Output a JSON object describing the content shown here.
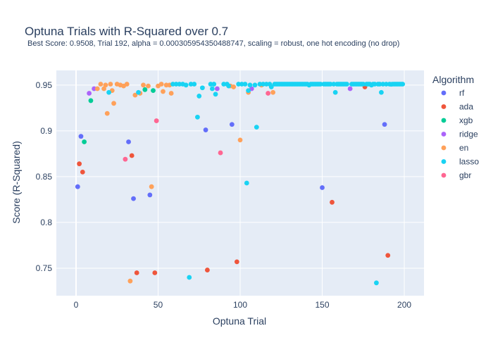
{
  "chart_data": {
    "type": "scatter",
    "title": "Optuna Trials with R-Squared over 0.7",
    "subtitle": "Best Score: 0.9508, Trial 192, alpha = 0.000305954350488747, scaling = robust, one hot encoding (no drop)",
    "xlabel": "Optuna Trial",
    "ylabel": "Score (R-Squared)",
    "xlim": [
      -12,
      212
    ],
    "ylim": [
      0.72,
      0.966
    ],
    "x_ticks": [
      0,
      50,
      100,
      150,
      200
    ],
    "y_ticks": [
      0.75,
      0.8,
      0.85,
      0.9,
      0.95
    ],
    "x_tick_labels": [
      "0",
      "50",
      "100",
      "150",
      "200"
    ],
    "y_tick_labels": [
      "0.75",
      "0.8",
      "0.85",
      "0.9",
      "0.95"
    ],
    "grid": true,
    "legend_title": "Algorithm",
    "legend_position": "right",
    "series": [
      {
        "name": "rf",
        "color": "#636efa",
        "points": [
          [
            1,
            0.839
          ],
          [
            3,
            0.894
          ],
          [
            32,
            0.888
          ],
          [
            35,
            0.826
          ],
          [
            45,
            0.83
          ],
          [
            79,
            0.901
          ],
          [
            95,
            0.907
          ],
          [
            150,
            0.838
          ],
          [
            188,
            0.907
          ]
        ]
      },
      {
        "name": "ada",
        "color": "#ef553b",
        "points": [
          [
            2,
            0.864
          ],
          [
            4,
            0.855
          ],
          [
            34,
            0.873
          ],
          [
            37,
            0.745
          ],
          [
            48,
            0.745
          ],
          [
            80,
            0.748
          ],
          [
            98,
            0.757
          ],
          [
            156,
            0.822
          ],
          [
            176,
            0.948
          ],
          [
            190,
            0.764
          ]
        ]
      },
      {
        "name": "xgb",
        "color": "#00cc96",
        "points": [
          [
            5,
            0.888
          ],
          [
            9,
            0.933
          ],
          [
            42,
            0.945
          ],
          [
            47,
            0.944
          ]
        ]
      },
      {
        "name": "ridge",
        "color": "#ab63fa",
        "points": [
          [
            8,
            0.941
          ],
          [
            11,
            0.946
          ],
          [
            86,
            0.946
          ],
          [
            107,
            0.946
          ],
          [
            167,
            0.946
          ]
        ]
      },
      {
        "name": "en",
        "color": "#ffa15a",
        "points": [
          [
            13,
            0.946
          ],
          [
            15,
            0.951
          ],
          [
            17,
            0.946
          ],
          [
            18,
            0.95
          ],
          [
            19,
            0.919
          ],
          [
            21,
            0.951
          ],
          [
            22,
            0.944
          ],
          [
            23,
            0.93
          ],
          [
            25,
            0.951
          ],
          [
            27,
            0.95
          ],
          [
            29,
            0.949
          ],
          [
            31,
            0.951
          ],
          [
            33,
            0.736
          ],
          [
            36,
            0.939
          ],
          [
            39,
            0.941
          ],
          [
            41,
            0.95
          ],
          [
            44,
            0.949
          ],
          [
            46,
            0.839
          ],
          [
            50,
            0.949
          ],
          [
            52,
            0.951
          ],
          [
            53,
            0.943
          ],
          [
            55,
            0.95
          ],
          [
            57,
            0.95
          ],
          [
            58,
            0.941
          ],
          [
            94,
            0.949
          ],
          [
            96,
            0.948
          ],
          [
            100,
            0.89
          ],
          [
            105,
            0.942
          ],
          [
            113,
            0.95
          ],
          [
            120,
            0.942
          ]
        ]
      },
      {
        "name": "lasso",
        "color": "#19d3f3",
        "points": [
          [
            20,
            0.942
          ],
          [
            38,
            0.942
          ],
          [
            59,
            0.951
          ],
          [
            61,
            0.951
          ],
          [
            63,
            0.951
          ],
          [
            65,
            0.951
          ],
          [
            67,
            0.95
          ],
          [
            69,
            0.74
          ],
          [
            70,
            0.951
          ],
          [
            72,
            0.951
          ],
          [
            74,
            0.915
          ],
          [
            75,
            0.938
          ],
          [
            77,
            0.947
          ],
          [
            82,
            0.951
          ],
          [
            83,
            0.946
          ],
          [
            84,
            0.951
          ],
          [
            85,
            0.94
          ],
          [
            90,
            0.951
          ],
          [
            92,
            0.951
          ],
          [
            93,
            0.949
          ],
          [
            99,
            0.951
          ],
          [
            101,
            0.951
          ],
          [
            103,
            0.951
          ],
          [
            104,
            0.843
          ],
          [
            105,
            0.944
          ],
          [
            106,
            0.95
          ],
          [
            109,
            0.95
          ],
          [
            110,
            0.904
          ],
          [
            112,
            0.951
          ],
          [
            114,
            0.951
          ],
          [
            116,
            0.951
          ],
          [
            118,
            0.951
          ],
          [
            119,
            0.948
          ],
          [
            121,
            0.951
          ],
          [
            122,
            0.951
          ],
          [
            123,
            0.951
          ],
          [
            124,
            0.951
          ],
          [
            125,
            0.951
          ],
          [
            126,
            0.951
          ],
          [
            127,
            0.951
          ],
          [
            128,
            0.951
          ],
          [
            129,
            0.951
          ],
          [
            130,
            0.951
          ],
          [
            131,
            0.951
          ],
          [
            132,
            0.951
          ],
          [
            133,
            0.951
          ],
          [
            134,
            0.951
          ],
          [
            135,
            0.951
          ],
          [
            136,
            0.951
          ],
          [
            137,
            0.951
          ],
          [
            138,
            0.951
          ],
          [
            139,
            0.951
          ],
          [
            140,
            0.951
          ],
          [
            141,
            0.951
          ],
          [
            142,
            0.95
          ],
          [
            143,
            0.951
          ],
          [
            144,
            0.951
          ],
          [
            145,
            0.951
          ],
          [
            146,
            0.951
          ],
          [
            147,
            0.951
          ],
          [
            148,
            0.951
          ],
          [
            149,
            0.951
          ],
          [
            151,
            0.951
          ],
          [
            152,
            0.951
          ],
          [
            153,
            0.951
          ],
          [
            154,
            0.951
          ],
          [
            155,
            0.951
          ],
          [
            157,
            0.951
          ],
          [
            158,
            0.942
          ],
          [
            159,
            0.951
          ],
          [
            160,
            0.951
          ],
          [
            161,
            0.951
          ],
          [
            162,
            0.951
          ],
          [
            163,
            0.951
          ],
          [
            164,
            0.951
          ],
          [
            165,
            0.951
          ],
          [
            168,
            0.951
          ],
          [
            169,
            0.951
          ],
          [
            170,
            0.951
          ],
          [
            171,
            0.951
          ],
          [
            172,
            0.951
          ],
          [
            173,
            0.951
          ],
          [
            174,
            0.951
          ],
          [
            175,
            0.951
          ],
          [
            177,
            0.951
          ],
          [
            178,
            0.951
          ],
          [
            179,
            0.951
          ],
          [
            180,
            0.95
          ],
          [
            181,
            0.951
          ],
          [
            182,
            0.951
          ],
          [
            183,
            0.734
          ],
          [
            184,
            0.951
          ],
          [
            185,
            0.951
          ],
          [
            186,
            0.942
          ],
          [
            187,
            0.951
          ],
          [
            189,
            0.951
          ],
          [
            191,
            0.951
          ],
          [
            192,
            0.9508
          ],
          [
            193,
            0.951
          ],
          [
            194,
            0.951
          ],
          [
            195,
            0.951
          ],
          [
            196,
            0.951
          ],
          [
            197,
            0.951
          ],
          [
            198,
            0.951
          ],
          [
            199,
            0.951
          ]
        ]
      },
      {
        "name": "gbr",
        "color": "#ff6692",
        "points": [
          [
            30,
            0.869
          ],
          [
            49,
            0.911
          ],
          [
            88,
            0.876
          ],
          [
            117,
            0.941
          ]
        ]
      }
    ]
  }
}
